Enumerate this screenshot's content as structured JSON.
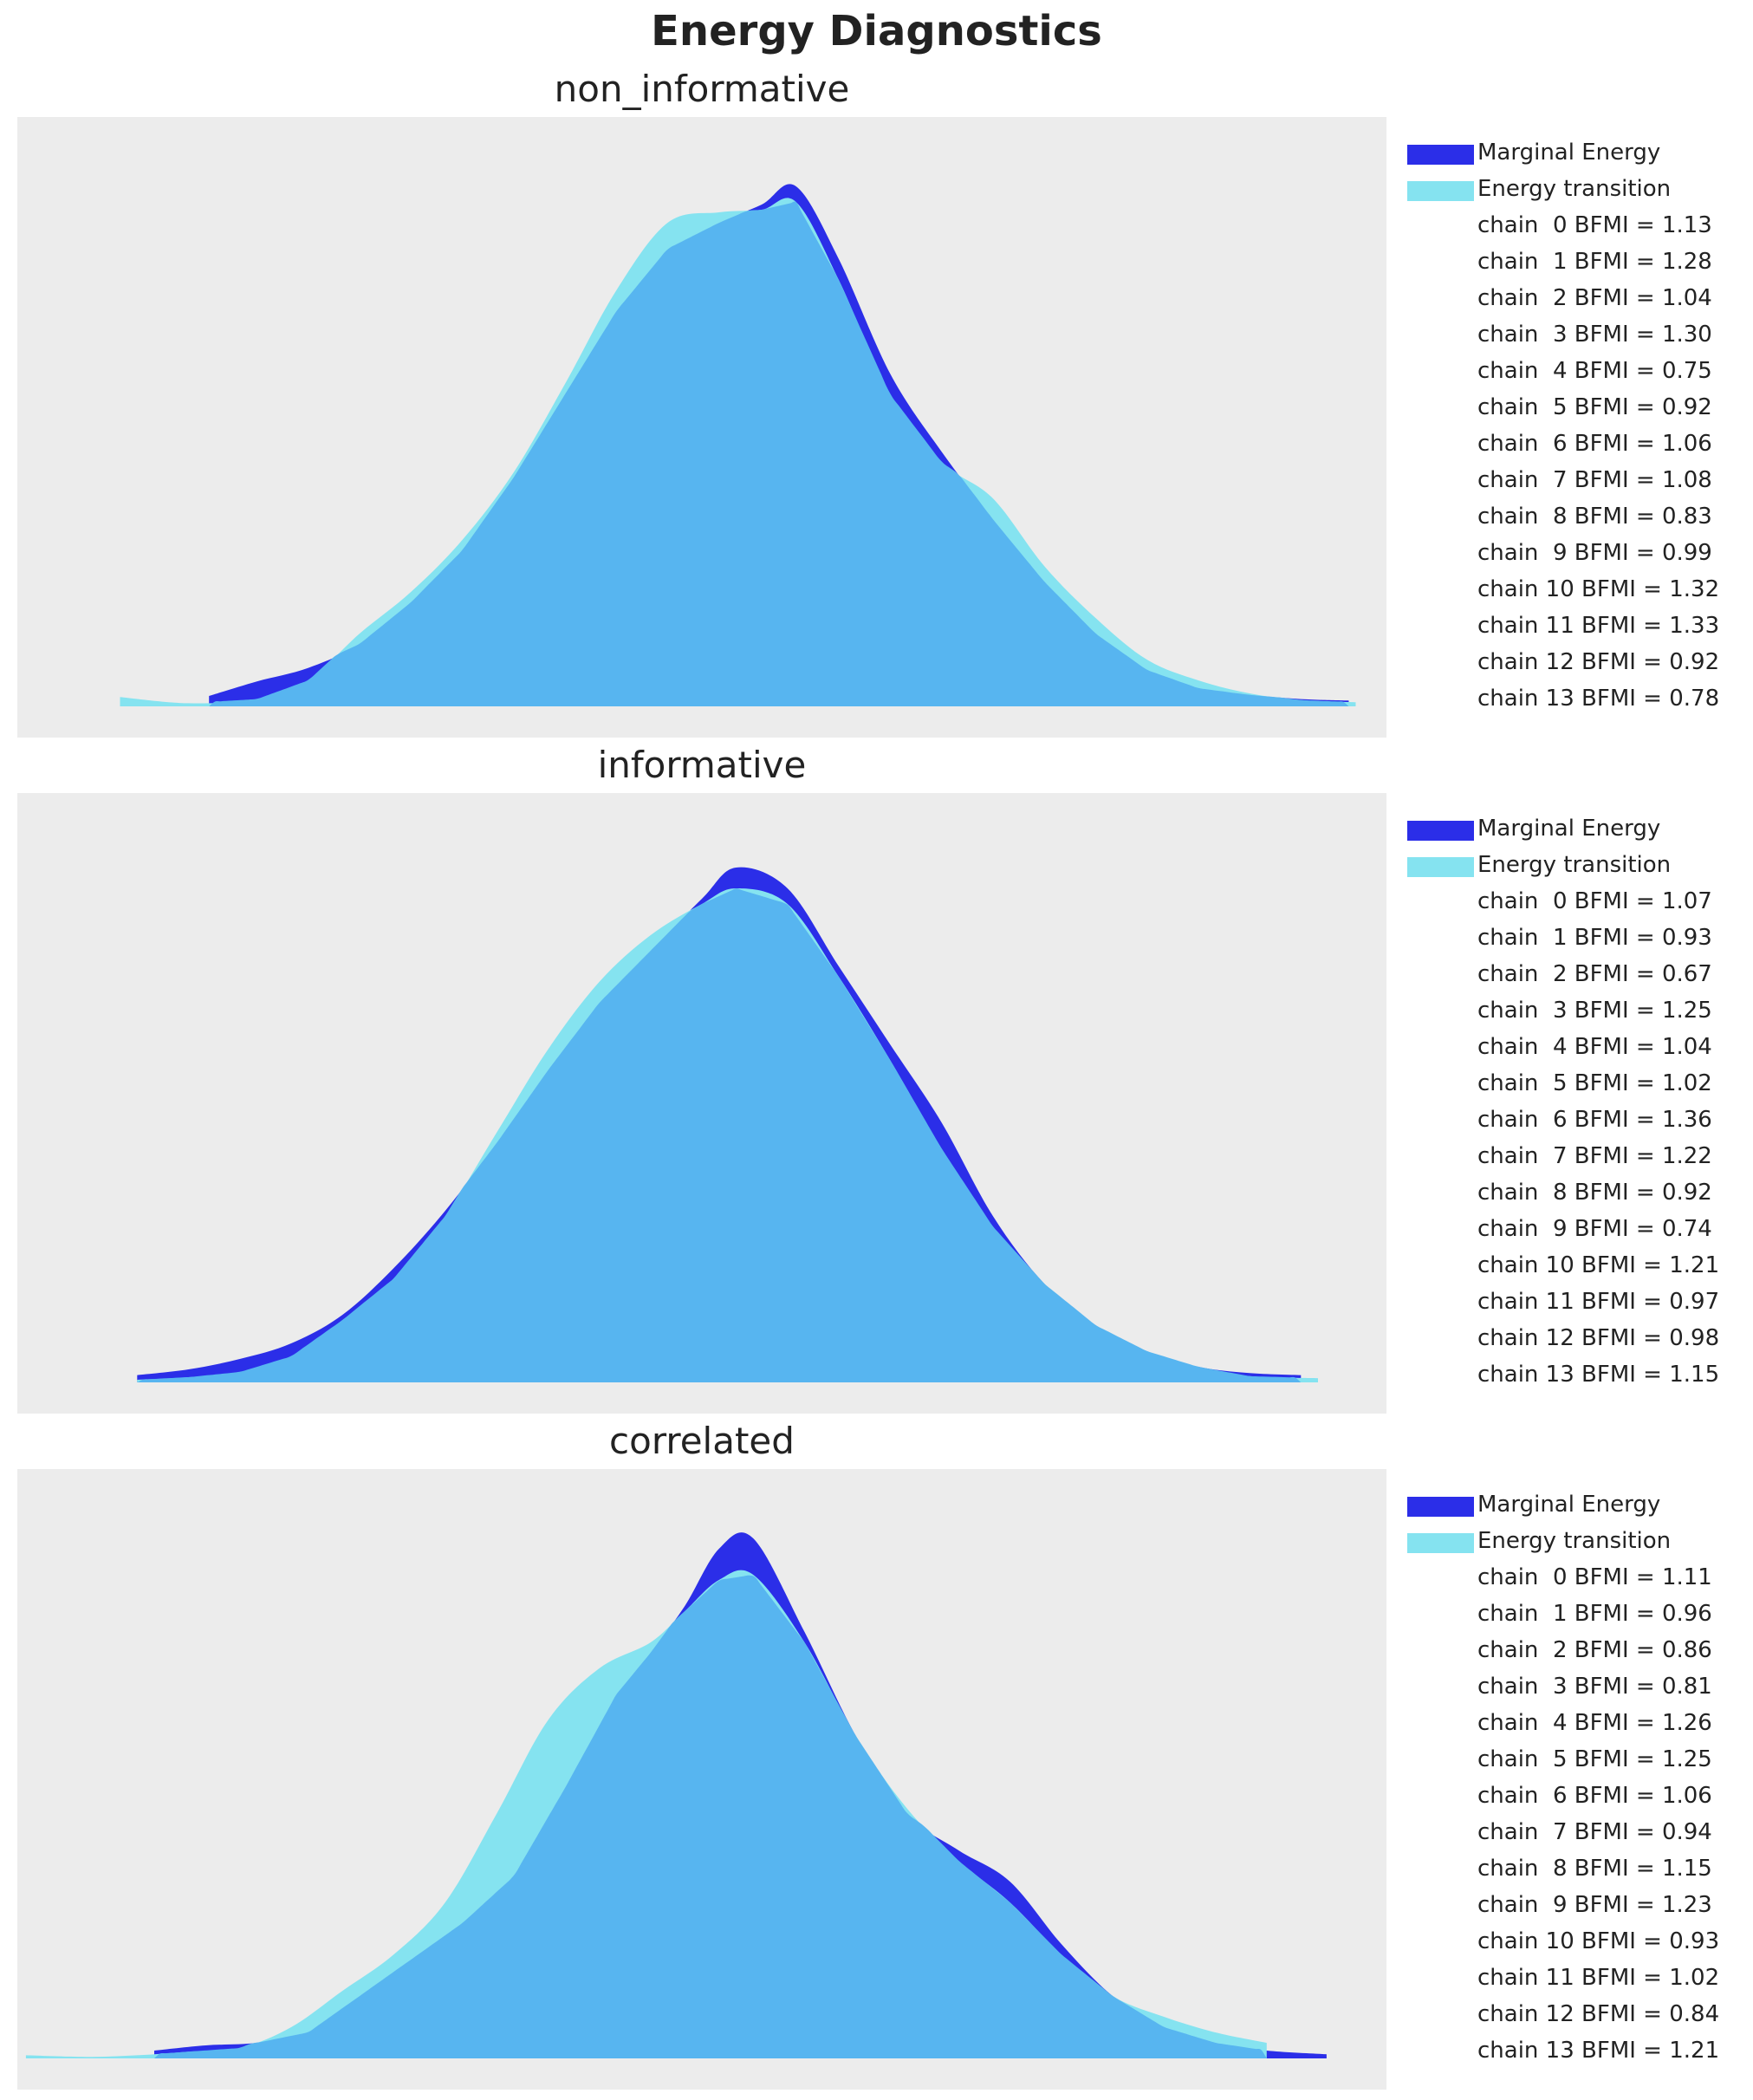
{
  "title": "Energy Diagnostics",
  "colors": {
    "marginal": "#2b2ee8",
    "transition": "#85e3f0",
    "overlap": "#57b5f0",
    "background": "#ececec"
  },
  "legend_labels": {
    "marginal": "Marginal Energy",
    "transition": "Energy transition"
  },
  "chart_data": [
    {
      "type": "area",
      "title": "non_informative",
      "xlabel": "",
      "ylabel": "",
      "grid": false,
      "legend": "outside-right",
      "series": [
        {
          "name": "Marginal Energy",
          "x": [
            -2.88,
            -2.6,
            -2.3,
            -2.0,
            -1.7,
            -1.4,
            -1.1,
            -0.8,
            -0.5,
            -0.2,
            0.1,
            0.35,
            0.55,
            0.8,
            1.1,
            1.4,
            1.7,
            2.0,
            2.3,
            2.6,
            2.9,
            3.2,
            3.5,
            3.78
          ],
          "y": [
            0.02,
            0.048,
            0.074,
            0.12,
            0.2,
            0.3,
            0.44,
            0.6,
            0.76,
            0.88,
            0.93,
            0.965,
            1.0,
            0.86,
            0.64,
            0.49,
            0.36,
            0.24,
            0.14,
            0.07,
            0.035,
            0.022,
            0.014,
            0.011
          ]
        },
        {
          "name": "Energy transition",
          "x": [
            -3.4,
            -3.0,
            -2.6,
            -2.3,
            -2.0,
            -1.7,
            -1.4,
            -1.1,
            -0.8,
            -0.5,
            -0.2,
            0.1,
            0.35,
            0.55,
            0.8,
            1.1,
            1.4,
            1.7,
            2.0,
            2.3,
            2.6,
            2.9,
            3.2,
            3.5,
            3.82
          ],
          "y": [
            0.018,
            0.006,
            0.014,
            0.05,
            0.14,
            0.22,
            0.32,
            0.45,
            0.62,
            0.8,
            0.93,
            0.95,
            0.955,
            0.97,
            0.82,
            0.6,
            0.47,
            0.4,
            0.27,
            0.17,
            0.09,
            0.05,
            0.025,
            0.012,
            0.008
          ]
        }
      ],
      "bfmi": [
        {
          "chain": 0,
          "value": 1.13
        },
        {
          "chain": 1,
          "value": 1.28
        },
        {
          "chain": 2,
          "value": 1.04
        },
        {
          "chain": 3,
          "value": 1.3
        },
        {
          "chain": 4,
          "value": 0.75
        },
        {
          "chain": 5,
          "value": 0.92
        },
        {
          "chain": 6,
          "value": 1.06
        },
        {
          "chain": 7,
          "value": 1.08
        },
        {
          "chain": 8,
          "value": 0.83
        },
        {
          "chain": 9,
          "value": 0.99
        },
        {
          "chain": 10,
          "value": 1.32
        },
        {
          "chain": 11,
          "value": 1.33
        },
        {
          "chain": 12,
          "value": 0.92
        },
        {
          "chain": 13,
          "value": 0.78
        }
      ],
      "bfmi_labels": [
        "chain  0 BFMI = 1.13",
        "chain  1 BFMI = 1.28",
        "chain  2 BFMI = 1.04",
        "chain  3 BFMI = 1.30",
        "chain  4 BFMI = 0.75",
        "chain  5 BFMI = 0.92",
        "chain  6 BFMI = 1.06",
        "chain  7 BFMI = 1.08",
        "chain  8 BFMI = 0.83",
        "chain  9 BFMI = 0.99",
        "chain 10 BFMI = 1.32",
        "chain 11 BFMI = 1.33",
        "chain 12 BFMI = 0.92",
        "chain 13 BFMI = 0.78"
      ]
    },
    {
      "type": "area",
      "title": "informative",
      "xlabel": "",
      "ylabel": "",
      "grid": false,
      "legend": "outside-right",
      "series": [
        {
          "name": "Marginal Energy",
          "x": [
            -3.3,
            -3.0,
            -2.7,
            -2.4,
            -2.1,
            -1.8,
            -1.5,
            -1.2,
            -0.9,
            -0.6,
            -0.3,
            0.0,
            0.2,
            0.5,
            0.8,
            1.1,
            1.4,
            1.7,
            2.0,
            2.3,
            2.6,
            2.9,
            3.2,
            3.5
          ],
          "y": [
            0.014,
            0.025,
            0.045,
            0.075,
            0.13,
            0.22,
            0.33,
            0.46,
            0.6,
            0.73,
            0.83,
            0.93,
            0.99,
            0.95,
            0.8,
            0.65,
            0.5,
            0.32,
            0.19,
            0.11,
            0.06,
            0.03,
            0.018,
            0.014
          ]
        },
        {
          "name": "Energy transition",
          "x": [
            -3.3,
            -3.0,
            -2.7,
            -2.4,
            -2.1,
            -1.8,
            -1.5,
            -1.2,
            -0.9,
            -0.6,
            -0.3,
            0.0,
            0.2,
            0.5,
            0.8,
            1.1,
            1.4,
            1.7,
            2.0,
            2.3,
            2.6,
            2.9,
            3.2,
            3.6
          ],
          "y": [
            0.005,
            0.01,
            0.02,
            0.05,
            0.12,
            0.2,
            0.32,
            0.48,
            0.64,
            0.77,
            0.86,
            0.92,
            0.95,
            0.92,
            0.78,
            0.62,
            0.45,
            0.3,
            0.19,
            0.11,
            0.06,
            0.03,
            0.012,
            0.008
          ]
        }
      ],
      "bfmi": [
        {
          "chain": 0,
          "value": 1.07
        },
        {
          "chain": 1,
          "value": 0.93
        },
        {
          "chain": 2,
          "value": 0.67
        },
        {
          "chain": 3,
          "value": 1.25
        },
        {
          "chain": 4,
          "value": 1.04
        },
        {
          "chain": 5,
          "value": 1.02
        },
        {
          "chain": 6,
          "value": 1.36
        },
        {
          "chain": 7,
          "value": 1.22
        },
        {
          "chain": 8,
          "value": 0.92
        },
        {
          "chain": 9,
          "value": 0.74
        },
        {
          "chain": 10,
          "value": 1.21
        },
        {
          "chain": 11,
          "value": 0.97
        },
        {
          "chain": 12,
          "value": 0.98
        },
        {
          "chain": 13,
          "value": 1.15
        }
      ],
      "bfmi_labels": [
        "chain  0 BFMI = 1.07",
        "chain  1 BFMI = 0.93",
        "chain  2 BFMI = 0.67",
        "chain  3 BFMI = 1.25",
        "chain  4 BFMI = 1.04",
        "chain  5 BFMI = 1.02",
        "chain  6 BFMI = 1.36",
        "chain  7 BFMI = 1.22",
        "chain  8 BFMI = 0.92",
        "chain  9 BFMI = 0.74",
        "chain 10 BFMI = 1.21",
        "chain 11 BFMI = 0.97",
        "chain 12 BFMI = 0.98",
        "chain 13 BFMI = 1.15"
      ]
    },
    {
      "type": "area",
      "title": "correlated",
      "xlabel": "",
      "ylabel": "",
      "grid": false,
      "legend": "outside-right",
      "series": [
        {
          "name": "Marginal Energy",
          "x": [
            -3.2,
            -2.9,
            -2.6,
            -2.3,
            -2.0,
            -1.7,
            -1.4,
            -1.1,
            -0.8,
            -0.5,
            -0.3,
            -0.1,
            0.1,
            0.3,
            0.6,
            0.9,
            1.2,
            1.5,
            1.8,
            2.1,
            2.4,
            2.7,
            3.0,
            3.3,
            3.65
          ],
          "y": [
            0.015,
            0.025,
            0.03,
            0.05,
            0.12,
            0.19,
            0.26,
            0.35,
            0.52,
            0.7,
            0.78,
            0.87,
            0.98,
            1.0,
            0.82,
            0.62,
            0.47,
            0.4,
            0.34,
            0.22,
            0.12,
            0.06,
            0.03,
            0.015,
            0.008
          ]
        },
        {
          "name": "Energy transition",
          "x": [
            -3.95,
            -3.6,
            -3.3,
            -3.0,
            -2.7,
            -2.4,
            -2.1,
            -1.8,
            -1.5,
            -1.2,
            -0.9,
            -0.6,
            -0.3,
            -0.1,
            0.1,
            0.3,
            0.6,
            0.9,
            1.2,
            1.5,
            1.8,
            2.1,
            2.4,
            2.7,
            3.0,
            3.3
          ],
          "y": [
            0.006,
            0.003,
            0.006,
            0.013,
            0.02,
            0.06,
            0.13,
            0.2,
            0.3,
            0.47,
            0.65,
            0.75,
            0.8,
            0.86,
            0.92,
            0.93,
            0.8,
            0.62,
            0.48,
            0.38,
            0.3,
            0.2,
            0.12,
            0.08,
            0.05,
            0.03
          ]
        }
      ],
      "bfmi": [
        {
          "chain": 0,
          "value": 1.11
        },
        {
          "chain": 1,
          "value": 0.96
        },
        {
          "chain": 2,
          "value": 0.86
        },
        {
          "chain": 3,
          "value": 0.81
        },
        {
          "chain": 4,
          "value": 1.26
        },
        {
          "chain": 5,
          "value": 1.25
        },
        {
          "chain": 6,
          "value": 1.06
        },
        {
          "chain": 7,
          "value": 0.94
        },
        {
          "chain": 8,
          "value": 1.15
        },
        {
          "chain": 9,
          "value": 1.23
        },
        {
          "chain": 10,
          "value": 0.93
        },
        {
          "chain": 11,
          "value": 1.02
        },
        {
          "chain": 12,
          "value": 0.84
        },
        {
          "chain": 13,
          "value": 1.21
        }
      ],
      "bfmi_labels": [
        "chain  0 BFMI = 1.11",
        "chain  1 BFMI = 0.96",
        "chain  2 BFMI = 0.86",
        "chain  3 BFMI = 0.81",
        "chain  4 BFMI = 1.26",
        "chain  5 BFMI = 1.25",
        "chain  6 BFMI = 1.06",
        "chain  7 BFMI = 0.94",
        "chain  8 BFMI = 1.15",
        "chain  9 BFMI = 1.23",
        "chain 10 BFMI = 0.93",
        "chain 11 BFMI = 1.02",
        "chain 12 BFMI = 0.84",
        "chain 13 BFMI = 1.21"
      ]
    }
  ]
}
